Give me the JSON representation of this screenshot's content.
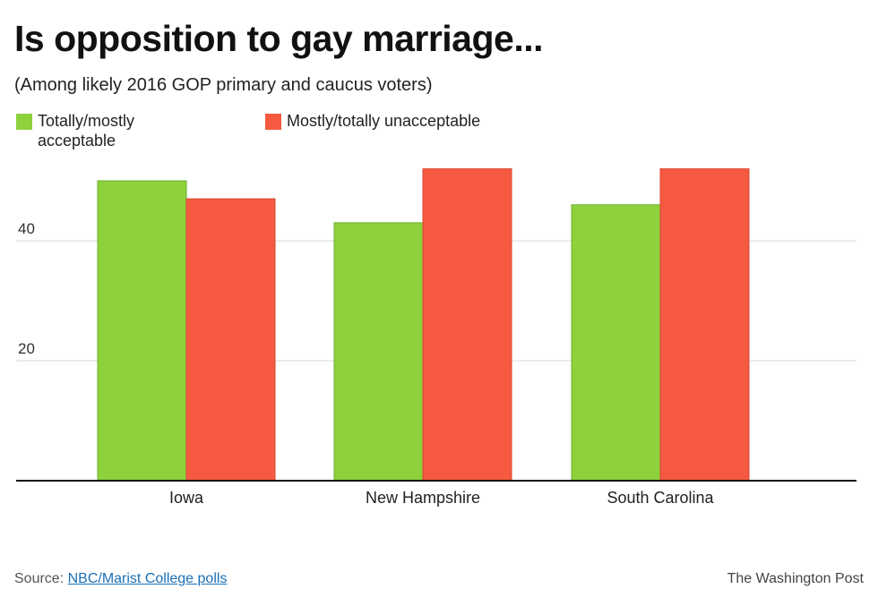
{
  "chart_data": {
    "type": "bar",
    "title": "Is opposition to gay marriage...",
    "subtitle": "(Among likely 2016 GOP primary and caucus voters)",
    "categories": [
      "Iowa",
      "New Hampshire",
      "South Carolina"
    ],
    "series": [
      {
        "name": "Totally/mostly acceptable",
        "color": "#8dd13d",
        "values": [
          50,
          43,
          46
        ]
      },
      {
        "name": "Mostly/totally unacceptable",
        "color": "#f55a40",
        "values": [
          47,
          52,
          52
        ]
      }
    ],
    "yticks": [
      20,
      40
    ],
    "ylim": [
      0,
      60
    ],
    "grid": true,
    "legend": "top-left",
    "xlabel": "",
    "ylabel": ""
  },
  "legend": {
    "green_label": "Totally/mostly acceptable",
    "red_label": "Mostly/totally unacceptable"
  },
  "footer": {
    "source_prefix": "Source: ",
    "source_link": "NBC/Marist College polls",
    "credit": "The Washington Post"
  }
}
